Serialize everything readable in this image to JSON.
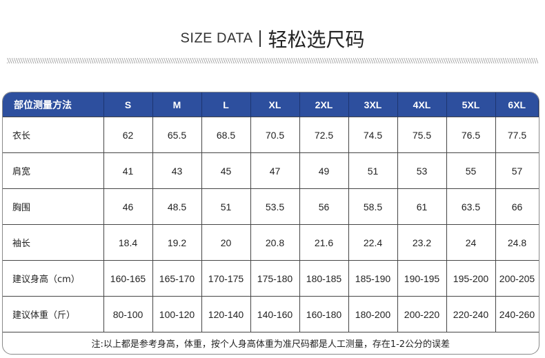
{
  "title": {
    "en": "SIZE DATA",
    "cn": "轻松选尺码"
  },
  "table": {
    "header": [
      "部位测量方法",
      "S",
      "M",
      "L",
      "XL",
      "2XL",
      "3XL",
      "4XL",
      "5XL",
      "6XL"
    ],
    "rows": [
      {
        "label": "衣长",
        "values": [
          "62",
          "65.5",
          "68.5",
          "70.5",
          "72.5",
          "74.5",
          "75.5",
          "76.5",
          "77.5"
        ]
      },
      {
        "label": "肩宽",
        "values": [
          "41",
          "43",
          "45",
          "47",
          "49",
          "51",
          "53",
          "55",
          "57"
        ]
      },
      {
        "label": "胸围",
        "values": [
          "46",
          "48.5",
          "51",
          "53.5",
          "56",
          "58.5",
          "61",
          "63.5",
          "66"
        ]
      },
      {
        "label": "袖长",
        "values": [
          "18.4",
          "19.2",
          "20",
          "20.8",
          "21.6",
          "22.4",
          "23.2",
          "24",
          "24.8"
        ]
      },
      {
        "label": "建议身高（cm）",
        "values": [
          "160-165",
          "165-170",
          "170-175",
          "175-180",
          "180-185",
          "185-190",
          "190-195",
          "195-200",
          "200-205"
        ]
      },
      {
        "label": "建议体重（斤）",
        "values": [
          "80-100",
          "100-120",
          "120-140",
          "140-160",
          "160-180",
          "180-200",
          "200-220",
          "220-240",
          "240-260"
        ]
      }
    ],
    "note": "注:以上都是参考身高，体重，按个人身高体重为准尺码都是人工测量，存在1-2公分的误差"
  },
  "colors": {
    "header_bg": "#2d4f9e",
    "header_text": "#ffffff"
  }
}
